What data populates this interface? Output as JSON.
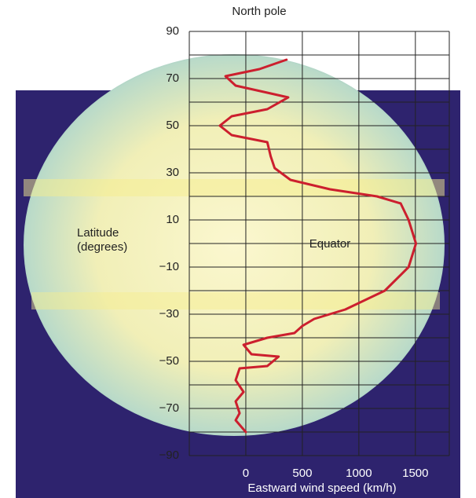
{
  "chart_data": {
    "type": "line",
    "title": "North pole",
    "x_label": "Eastward wind speed (km/h)",
    "y_label": "Latitude (degrees)",
    "annotation": "Equator",
    "xlim": [
      -500,
      1800
    ],
    "xticks": [
      0,
      500,
      1000,
      1500
    ],
    "ylim": [
      -90,
      90
    ],
    "yticks": [
      90,
      70,
      50,
      30,
      10,
      {
        "value": -10,
        "label": "−10"
      },
      {
        "value": -30,
        "label": "−30"
      },
      {
        "value": -50,
        "label": "−50"
      },
      {
        "value": -70,
        "label": "−70"
      },
      {
        "value": -90,
        "label": "−90"
      }
    ],
    "y_minor_ticks": [
      80,
      60,
      40,
      20,
      0,
      -20,
      -40,
      -60,
      -80
    ],
    "grid": true,
    "series": [
      {
        "color": "#cc1f2e",
        "x": [
          360,
          120,
          -180,
          -90,
          190,
          375,
          190,
          -125,
          -230,
          -125,
          190,
          220,
          255,
          395,
          745,
          1160,
          1370,
          1440,
          1505,
          1440,
          1230,
          880,
          605,
          500,
          430,
          190,
          -20,
          50,
          290,
          190,
          -55,
          -90,
          -20,
          -90,
          -55,
          -90,
          0
        ],
        "values": [
          78,
          74,
          71,
          67,
          64,
          62,
          57,
          54,
          50,
          46,
          43,
          37,
          32,
          27,
          23,
          20,
          17,
          10,
          0,
          -10,
          -20,
          -28,
          -32,
          -35,
          -38,
          -40,
          -43,
          -47,
          -48,
          -52,
          -53,
          -58,
          -63,
          -67,
          -72,
          -75,
          -80
        ]
      }
    ]
  }
}
